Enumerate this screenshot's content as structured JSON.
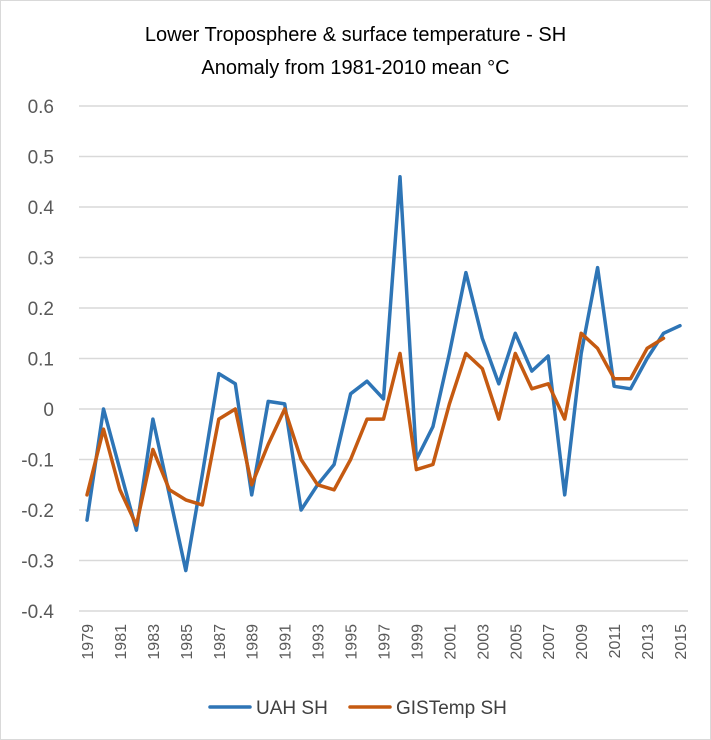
{
  "chart_data": {
    "type": "line",
    "title": "Lower Troposphere  & surface temperature  - SH",
    "subtitle": "Anomaly from 1981-2010 mean °C",
    "xlabel": "",
    "ylabel": "",
    "ylim": [
      -0.4,
      0.6
    ],
    "yticks": [
      0.6,
      0.5,
      0.4,
      0.3,
      0.2,
      0.1,
      0,
      -0.1,
      -0.2,
      -0.3,
      -0.4
    ],
    "ytick_labels": [
      "0.6",
      "0.5",
      "0.4",
      "0.3",
      "0.2",
      "0.1",
      "0",
      "-0.1",
      "-0.2",
      "-0.3",
      "-0.4"
    ],
    "x": [
      1979,
      1980,
      1981,
      1982,
      1983,
      1984,
      1985,
      1986,
      1987,
      1988,
      1989,
      1990,
      1991,
      1992,
      1993,
      1994,
      1995,
      1996,
      1997,
      1998,
      1999,
      2000,
      2001,
      2002,
      2003,
      2004,
      2005,
      2006,
      2007,
      2008,
      2009,
      2010,
      2011,
      2012,
      2013,
      2014,
      2015
    ],
    "xtick_labels": [
      "1979",
      "1981",
      "1983",
      "1985",
      "1987",
      "1989",
      "1991",
      "1993",
      "1995",
      "1997",
      "1999",
      "2001",
      "2003",
      "2005",
      "2007",
      "2009",
      "2011",
      "2013",
      "2015"
    ],
    "grid": true,
    "legend_position": "bottom",
    "series": [
      {
        "name": "UAH SH",
        "color": "#2E75B6",
        "values": [
          -0.22,
          0.0,
          -0.12,
          -0.24,
          -0.02,
          -0.17,
          -0.32,
          -0.13,
          0.07,
          0.05,
          -0.17,
          0.015,
          0.01,
          -0.2,
          -0.15,
          -0.11,
          0.03,
          0.055,
          0.02,
          0.46,
          -0.1,
          -0.035,
          0.11,
          0.27,
          0.14,
          0.05,
          0.15,
          0.075,
          0.105,
          -0.17,
          0.11,
          0.28,
          0.045,
          0.04,
          0.1,
          0.15,
          0.165
        ]
      },
      {
        "name": "GISTemp SH",
        "color": "#C55A11",
        "values": [
          -0.17,
          -0.04,
          -0.16,
          -0.23,
          -0.08,
          -0.16,
          -0.18,
          -0.19,
          -0.02,
          0.0,
          -0.15,
          -0.07,
          0.0,
          -0.1,
          -0.15,
          -0.16,
          -0.1,
          -0.02,
          -0.02,
          0.11,
          -0.12,
          -0.11,
          0.01,
          0.11,
          0.08,
          -0.02,
          0.11,
          0.04,
          0.05,
          -0.02,
          0.15,
          0.12,
          0.06,
          0.06,
          0.12,
          0.14,
          null
        ]
      }
    ]
  }
}
